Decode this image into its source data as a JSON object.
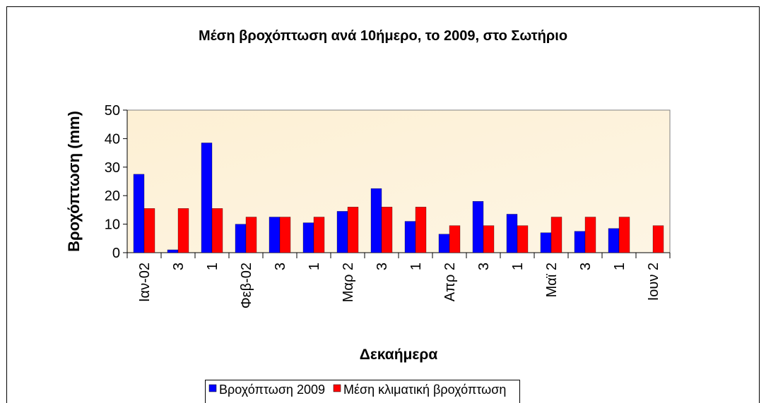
{
  "chart_data": {
    "type": "bar",
    "title": "Μέση βροχόπτωση ανά 10ήμερο, το 2009, στο Σωτήριο",
    "x_label": "Δεκαήμερα",
    "y_label": "Βροχόπτωση (mm)",
    "categories": [
      "Ιαν-02",
      "3",
      "1",
      "Φεβ-02",
      "3",
      "1",
      "Μαρ 2",
      "3",
      "1",
      "Απρ 2",
      "3",
      "1",
      "Μαϊ 2",
      "3",
      "1",
      "Ιουν 2"
    ],
    "series": [
      {
        "name": "Βροχόπτωση 2009",
        "color": "#0000ff",
        "values": [
          27.5,
          1,
          38.5,
          10,
          12.5,
          10.5,
          14.5,
          22.5,
          11,
          6.5,
          18,
          13.5,
          7,
          7.5,
          8.5,
          0
        ]
      },
      {
        "name": "Μέση κλιματική βροχόπτωση",
        "color": "#ff0000",
        "values": [
          15.5,
          15.5,
          15.5,
          12.5,
          12.5,
          12.5,
          16,
          16,
          16,
          9.5,
          9.5,
          9.5,
          12.5,
          12.5,
          12.5,
          9.5
        ]
      }
    ],
    "ylim": [
      0,
      50
    ],
    "yticks": [
      0,
      10,
      20,
      30,
      40,
      50
    ],
    "legend": "bottom"
  }
}
